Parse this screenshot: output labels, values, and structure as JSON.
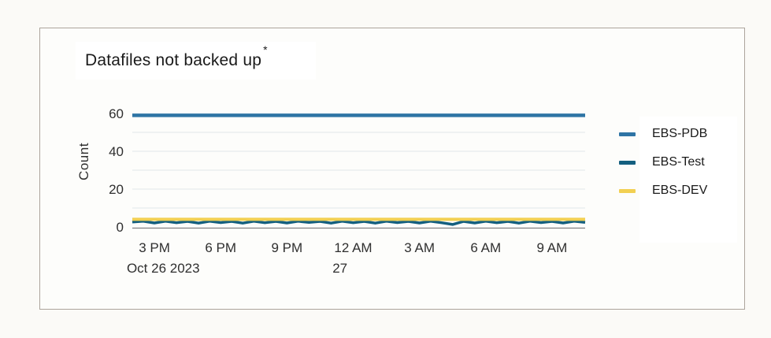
{
  "page": {
    "background": "#fbfaf7"
  },
  "card": {
    "border_color": "#aca49c",
    "background": "#fdfdfb"
  },
  "title": {
    "text": "Datafiles not backed up",
    "superscript": "*"
  },
  "chart_data": {
    "type": "line",
    "title": "Datafiles not backed up *",
    "xlabel": "",
    "ylabel": "Count",
    "ylim": [
      0,
      62
    ],
    "grid": "horizontal",
    "gridline_values": [
      10,
      20,
      30,
      40,
      50
    ],
    "y_ticks": [
      0,
      20,
      40,
      60
    ],
    "legend_position": "right",
    "x_axis": {
      "start_label": "Oct 26 2023",
      "sample_interval_hours": 0.5,
      "total_hours": 20.5,
      "ticks": [
        {
          "label": "3 PM",
          "hour": 1
        },
        {
          "label": "6 PM",
          "hour": 4
        },
        {
          "label": "9 PM",
          "hour": 7
        },
        {
          "label": "12 AM",
          "hour": 10
        },
        {
          "label": "3 AM",
          "hour": 13
        },
        {
          "label": "6 AM",
          "hour": 16
        },
        {
          "label": "9 AM",
          "hour": 19
        }
      ],
      "sub_labels": [
        {
          "label": "Oct 26 2023",
          "hour": 1.4
        },
        {
          "label": "27",
          "hour": 9.4
        }
      ]
    },
    "series": [
      {
        "name": "EBS-PDB",
        "color": "#2e74a5",
        "stroke_width": 4.5,
        "values": [
          59
        ]
      },
      {
        "name": "EBS-Test",
        "color": "#145f7f",
        "stroke_width": 3.5,
        "values": [
          2.6,
          3.0,
          2.1,
          3.0,
          2.2,
          2.9,
          2.0,
          3.0,
          2.3,
          2.9,
          2.0,
          3.0,
          2.2,
          2.9,
          2.1,
          3.0,
          2.4,
          2.9,
          2.0,
          3.0,
          2.2,
          2.9,
          2.0,
          3.0,
          2.3,
          2.9,
          2.1,
          3.0,
          2.2,
          1.3,
          2.9,
          2.1,
          3.0,
          2.2,
          2.9,
          2.0,
          3.0,
          2.3,
          2.9,
          2.1,
          3.0,
          2.4
        ]
      },
      {
        "name": "EBS-DEV",
        "color": "#f2d052",
        "stroke_width": 4.0,
        "values": [
          4
        ]
      }
    ],
    "colors": {
      "gridline": "#e1e6ea",
      "axis_line": "#808080",
      "tick_text": "#2f2f2f"
    }
  }
}
